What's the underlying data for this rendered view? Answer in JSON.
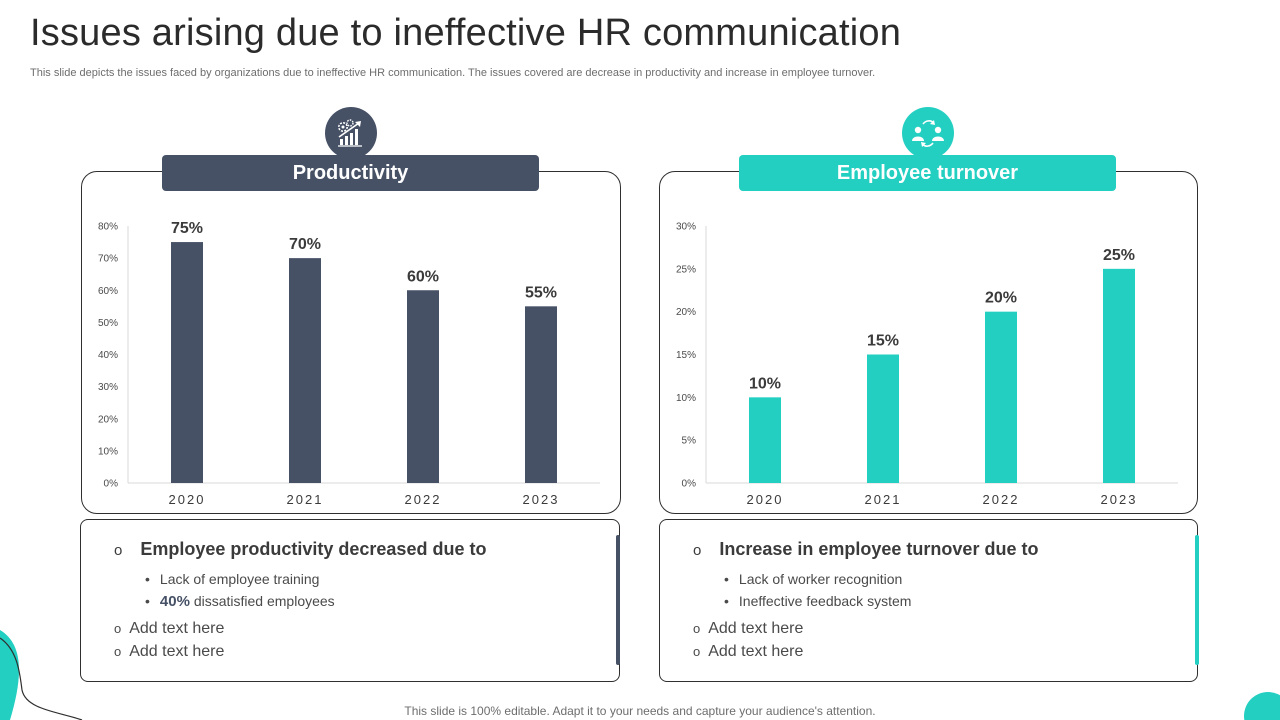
{
  "title": "Issues arising due to ineffective HR communication",
  "subtitle": "This slide depicts the issues faced by organizations due to ineffective HR communication. The issues covered are decrease in productivity and increase in employee turnover.",
  "footer": "This slide is 100% editable. Adapt it to your needs and capture your audience's attention.",
  "colors": {
    "dark": "#465166",
    "teal": "#22cfc1"
  },
  "left_panel": {
    "header": "Productivity",
    "icon": "growth-chart-gear-icon",
    "text_heading": "Employee productivity decreased due to",
    "bullets": [
      {
        "emphasis": "",
        "text": "Lack of employee training"
      },
      {
        "emphasis": "40%",
        "text": " dissatisfied employees"
      }
    ],
    "add_text": [
      "Add text here",
      "Add text here"
    ]
  },
  "right_panel": {
    "header": "Employee turnover",
    "icon": "people-exchange-icon",
    "text_heading": "Increase in employee turnover due to",
    "bullets": [
      {
        "emphasis": "",
        "text": "Lack of worker recognition"
      },
      {
        "emphasis": "",
        "text": "Ineffective feedback system"
      }
    ],
    "add_text": [
      "Add text here",
      "Add text here"
    ]
  },
  "chart_data": [
    {
      "type": "bar",
      "title": "Productivity",
      "categories": [
        "2020",
        "2021",
        "2022",
        "2023"
      ],
      "values": [
        75,
        70,
        60,
        55
      ],
      "data_labels": [
        "75%",
        "70%",
        "60%",
        "55%"
      ],
      "ylim": [
        0,
        80
      ],
      "yticks": [
        0,
        10,
        20,
        30,
        40,
        50,
        60,
        70,
        80
      ],
      "ytick_labels": [
        "0%",
        "10%",
        "20%",
        "30%",
        "40%",
        "50%",
        "60%",
        "70%",
        "80%"
      ],
      "xlabel": "",
      "ylabel": "",
      "grid": false,
      "color": "#465166"
    },
    {
      "type": "bar",
      "title": "Employee turnover",
      "categories": [
        "2020",
        "2021",
        "2022",
        "2023"
      ],
      "values": [
        10,
        15,
        20,
        25
      ],
      "data_labels": [
        "10%",
        "15%",
        "20%",
        "25%"
      ],
      "ylim": [
        0,
        30
      ],
      "yticks": [
        0,
        5,
        10,
        15,
        20,
        25,
        30
      ],
      "ytick_labels": [
        "0%",
        "5%",
        "10%",
        "15%",
        "20%",
        "25%",
        "30%"
      ],
      "xlabel": "",
      "ylabel": "",
      "grid": false,
      "color": "#22cfc1"
    }
  ]
}
